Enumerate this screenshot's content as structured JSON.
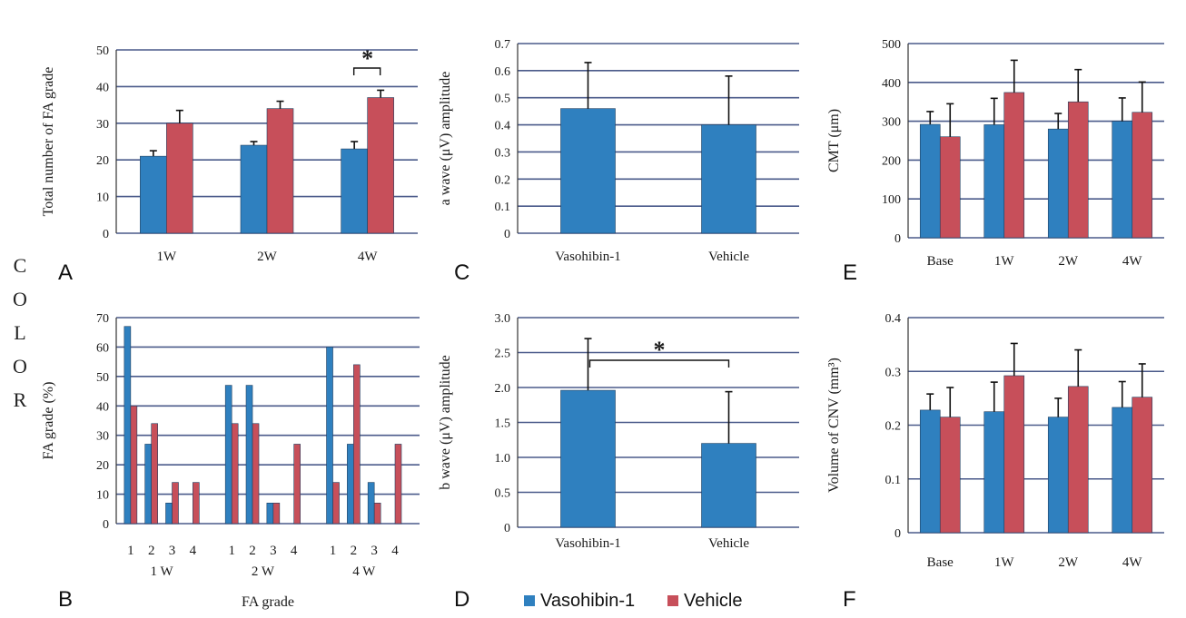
{
  "colors": {
    "vasohibin": "#2f80bf",
    "vehicle": "#c74f5a",
    "grid": "#4a5a8a",
    "axis": "#333333",
    "error_bar": "#111111"
  },
  "side_label": [
    "C",
    "O",
    "L",
    "O",
    "R"
  ],
  "legend": {
    "items": [
      {
        "label": "Vasohibin-1",
        "color": "#2f80bf"
      },
      {
        "label": "Vehicle",
        "color": "#c74f5a"
      }
    ]
  },
  "chart_data": [
    {
      "panel": "A",
      "type": "bar",
      "ylabel": "Total number of FA grade",
      "ylim": [
        0,
        50
      ],
      "yticks": [
        0,
        10,
        20,
        30,
        40,
        50
      ],
      "grid": true,
      "categories": [
        "1W",
        "2W",
        "4W"
      ],
      "series": [
        {
          "name": "Vasohibin-1",
          "values": [
            21,
            24,
            23
          ],
          "errors": [
            1.5,
            1,
            2
          ]
        },
        {
          "name": "Vehicle",
          "values": [
            30,
            34,
            37
          ],
          "errors": [
            3.5,
            2,
            2
          ]
        }
      ],
      "annotations": [
        {
          "text": "*",
          "between_category": 2
        }
      ]
    },
    {
      "panel": "B",
      "type": "bar",
      "xlabel": "FA grade",
      "ylabel": "FA grade (%)",
      "ylim": [
        0,
        70
      ],
      "yticks": [
        0,
        10,
        20,
        30,
        40,
        50,
        60,
        70
      ],
      "grid": true,
      "groups": [
        "1 W",
        "2 W",
        "4 W"
      ],
      "subcategories": [
        "1",
        "2",
        "3",
        "4"
      ],
      "series": [
        {
          "name": "Vasohibin-1",
          "values": [
            [
              67,
              27,
              7,
              0
            ],
            [
              47,
              47,
              7,
              0
            ],
            [
              60,
              27,
              14,
              0
            ]
          ]
        },
        {
          "name": "Vehicle",
          "values": [
            [
              40,
              34,
              14,
              14
            ],
            [
              34,
              34,
              7,
              27
            ],
            [
              14,
              54,
              7,
              27
            ]
          ]
        }
      ]
    },
    {
      "panel": "C",
      "type": "bar",
      "ylabel": "a wave (μV) amplitude",
      "ylim": [
        0,
        0.7
      ],
      "yticks": [
        0,
        0.1,
        0.2,
        0.3,
        0.4,
        0.5,
        0.6,
        0.7
      ],
      "grid": true,
      "categories": [
        "Vasohibin-1",
        "Vehicle"
      ],
      "values": [
        0.46,
        0.4
      ],
      "errors": [
        0.17,
        0.18
      ]
    },
    {
      "panel": "D",
      "type": "bar",
      "ylabel": "b wave (μV) amplitude",
      "ylim": [
        0,
        3.0
      ],
      "yticks": [
        "0",
        "0.5",
        "1.0",
        "1.5",
        "2.0",
        "2.5",
        "3.0"
      ],
      "grid": true,
      "categories": [
        "Vasohibin-1",
        "Vehicle"
      ],
      "values": [
        1.96,
        1.2
      ],
      "errors": [
        0.74,
        0.74
      ],
      "annotations": [
        {
          "text": "*"
        }
      ]
    },
    {
      "panel": "E",
      "type": "bar",
      "ylabel": "CMT (μm)",
      "ylim": [
        0,
        500
      ],
      "yticks": [
        0,
        100,
        200,
        300,
        400,
        500
      ],
      "grid": true,
      "categories": [
        "Base",
        "1W",
        "2W",
        "4W"
      ],
      "series": [
        {
          "name": "Vasohibin-1",
          "values": [
            292,
            291,
            280,
            300
          ],
          "errors": [
            33,
            68,
            40,
            60
          ]
        },
        {
          "name": "Vehicle",
          "values": [
            260,
            374,
            350,
            323
          ],
          "errors": [
            85,
            83,
            83,
            78
          ]
        }
      ]
    },
    {
      "panel": "F",
      "type": "bar",
      "ylabel": "Volume of CNV (mm³)",
      "ylim": [
        0,
        0.4
      ],
      "yticks": [
        "0",
        "0.1",
        "0.2",
        "0.3",
        "0.4"
      ],
      "grid": true,
      "categories": [
        "Base",
        "1W",
        "2W",
        "4W"
      ],
      "series": [
        {
          "name": "Vasohibin-1",
          "values": [
            0.228,
            0.225,
            0.215,
            0.233
          ],
          "errors": [
            0.03,
            0.055,
            0.035,
            0.048
          ]
        },
        {
          "name": "Vehicle",
          "values": [
            0.215,
            0.292,
            0.272,
            0.252
          ],
          "errors": [
            0.055,
            0.06,
            0.068,
            0.062
          ]
        }
      ]
    }
  ]
}
